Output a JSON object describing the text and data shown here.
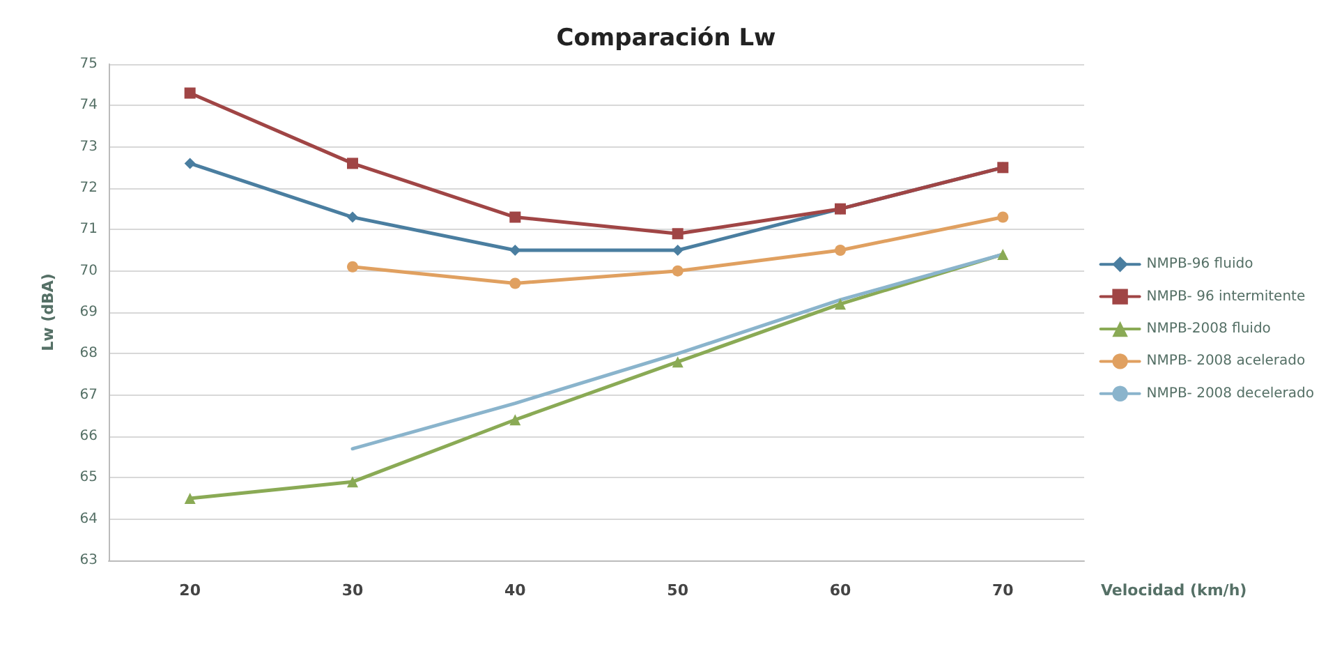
{
  "chart_data": {
    "type": "line",
    "title": "Comparación Lw",
    "xlabel": "Velocidad (km/h)",
    "ylabel": "Lw (dBA)",
    "categories": [
      "20",
      "30",
      "40",
      "50",
      "60",
      "70"
    ],
    "series": [
      {
        "name": "NMPB-96 fluido",
        "color": "#4a7ea0",
        "marker": "diamond",
        "values": [
          72.6,
          71.3,
          70.5,
          70.5,
          71.5,
          72.5
        ]
      },
      {
        "name": "NMPB- 96 intermitente",
        "color": "#a04545",
        "marker": "square",
        "values": [
          74.3,
          72.6,
          71.3,
          70.9,
          71.5,
          72.5
        ]
      },
      {
        "name": "NMPB-2008 fluido",
        "color": "#8aaa55",
        "marker": "triangle",
        "values": [
          64.5,
          64.9,
          66.4,
          67.8,
          69.2,
          70.4
        ]
      },
      {
        "name": "NMPB- 2008 acelerado",
        "color": "#e0a060",
        "marker": "circle",
        "values": [
          null,
          70.1,
          69.7,
          70.0,
          70.5,
          71.3
        ]
      },
      {
        "name": "NMPB- 2008 decelerado",
        "color": "#8ab4cc",
        "marker": "none",
        "values": [
          null,
          65.7,
          66.8,
          68.0,
          69.3,
          70.4
        ]
      }
    ],
    "ylim": [
      63,
      75
    ],
    "yticks": [
      63,
      64,
      65,
      66,
      67,
      68,
      69,
      70,
      71,
      72,
      73,
      74,
      75
    ],
    "grid": "y",
    "legend": "right"
  }
}
